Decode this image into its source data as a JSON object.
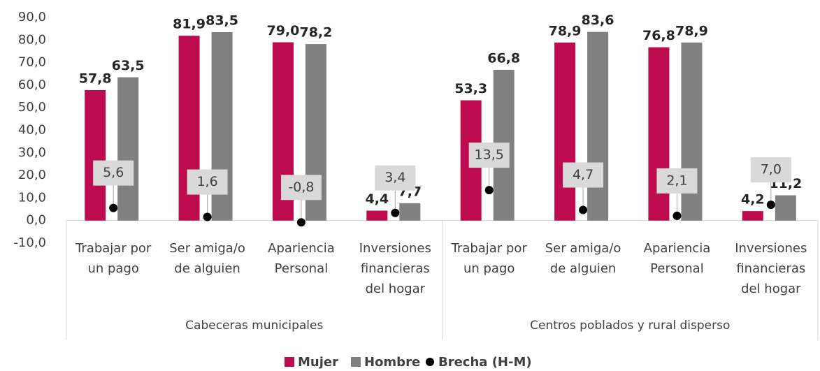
{
  "chart_data": {
    "type": "bar",
    "groups": [
      {
        "name": "Cabeceras municipales",
        "categories": [
          "Trabajar por un pago",
          "Ser amiga/o de alguien",
          "Apariencia Personal",
          "Inversiones financieras del hogar"
        ]
      },
      {
        "name": "Centros poblados y rural disperso",
        "categories": [
          "Trabajar por un pago",
          "Ser amiga/o de alguien",
          "Apariencia Personal",
          "Inversiones financieras del hogar"
        ]
      }
    ],
    "series": [
      {
        "name": "Mujer",
        "type": "bar",
        "color": "#be0a4f",
        "values": [
          57.8,
          81.9,
          79.0,
          4.4,
          53.3,
          78.9,
          76.8,
          4.2
        ],
        "value_labels": [
          "57,8",
          "81,9",
          "79,0",
          "4,4",
          "53,3",
          "78,9",
          "76,8",
          "4,2"
        ]
      },
      {
        "name": "Hombre",
        "type": "bar",
        "color": "#808080",
        "values": [
          63.5,
          83.5,
          78.2,
          7.7,
          66.8,
          83.6,
          78.9,
          11.2
        ],
        "value_labels": [
          "63,5",
          "83,5",
          "78,2",
          "7,7",
          "66,8",
          "83,6",
          "78,9",
          "11,2"
        ]
      },
      {
        "name": "Brecha (H-M)",
        "type": "scatter",
        "color": "#000000",
        "values": [
          5.6,
          1.6,
          -0.8,
          3.4,
          13.5,
          4.7,
          2.1,
          7.0
        ],
        "value_labels": [
          "5,6",
          "1,6",
          "-0,8",
          "3,4",
          "13,5",
          "4,7",
          "2,1",
          "7,0"
        ]
      }
    ],
    "ylim": [
      -10,
      90
    ],
    "yticks": [
      {
        "value": -10,
        "label": "-10,0"
      },
      {
        "value": 0,
        "label": "0,0"
      },
      {
        "value": 10,
        "label": "10,0"
      },
      {
        "value": 20,
        "label": "20,0"
      },
      {
        "value": 30,
        "label": "30,0"
      },
      {
        "value": 40,
        "label": "40,0"
      },
      {
        "value": 50,
        "label": "50,0"
      },
      {
        "value": 60,
        "label": "60,0"
      },
      {
        "value": 70,
        "label": "70,0"
      },
      {
        "value": 80,
        "label": "80,0"
      },
      {
        "value": 90,
        "label": "90,0"
      }
    ],
    "legend": "bottom"
  }
}
